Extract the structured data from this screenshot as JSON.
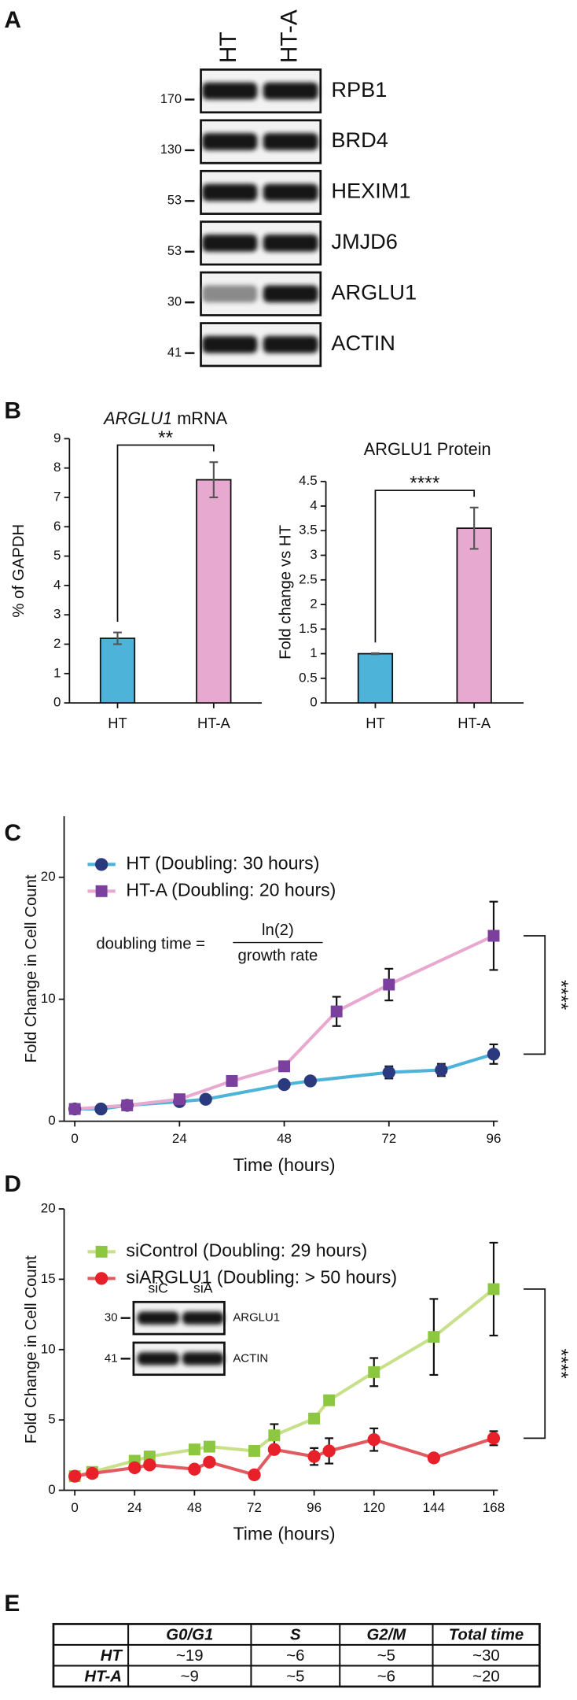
{
  "panel_labels": [
    "A",
    "B",
    "C",
    "D",
    "E"
  ],
  "blot_a": {
    "lanes": [
      "HT",
      "HT-A"
    ],
    "rows": [
      {
        "label": "RPB1",
        "marker": 170
      },
      {
        "label": "BRD4",
        "marker": 130
      },
      {
        "label": "HEXIM1",
        "marker": 53
      },
      {
        "label": "JMJD6",
        "marker": 53
      },
      {
        "label": "ARGLU1",
        "marker": 30
      },
      {
        "label": "ACTIN",
        "marker": 41
      }
    ]
  },
  "chart_data": [
    {
      "type": "bar",
      "title": [
        "ARGLU1",
        "mRNA"
      ],
      "ylabel": "% of GAPDH",
      "categories": [
        "HT",
        "HT-A"
      ],
      "values": [
        2.2,
        7.6
      ],
      "errors": [
        0.2,
        0.6
      ],
      "colors": [
        "#4db3d8",
        "#e8a9d0"
      ],
      "ylim": [
        0,
        9
      ],
      "yticks": [
        0,
        1,
        2,
        3,
        4,
        5,
        6,
        7,
        8,
        9
      ],
      "significance": "**"
    },
    {
      "type": "bar",
      "title": "ARGLU1 Protein",
      "ylabel": "Fold change vs HT",
      "categories": [
        "HT",
        "HT-A"
      ],
      "values": [
        1.0,
        3.55
      ],
      "errors": [
        0.01,
        0.42
      ],
      "colors": [
        "#4db3d8",
        "#e8a9d0"
      ],
      "ylim": [
        0,
        4.5
      ],
      "yticks": [
        0,
        0.5,
        1,
        1.5,
        2,
        2.5,
        3,
        3.5,
        4,
        4.5
      ],
      "significance": "****"
    },
    {
      "type": "line",
      "xlabel": "Time (hours)",
      "ylabel": "Fold Change in Cell Count",
      "xlim": [
        0,
        96
      ],
      "xticks": [
        0,
        24,
        48,
        72,
        96
      ],
      "ylim": [
        0,
        25
      ],
      "yticks": [
        0,
        10,
        20
      ],
      "series": [
        {
          "name": "HT (Doubling: 30 hours)",
          "color": "#2b3a7e",
          "line_color": "#4db3d8",
          "marker": "circle",
          "x": [
            0,
            6,
            12,
            24,
            30,
            48,
            54,
            72,
            84,
            96
          ],
          "values": [
            1,
            1,
            1.3,
            1.6,
            1.8,
            3.0,
            3.3,
            4.0,
            4.2,
            5.5
          ],
          "errors": [
            null,
            null,
            null,
            null,
            null,
            null,
            null,
            0.5,
            0.5,
            0.8
          ]
        },
        {
          "name": "HT-A (Doubling: 20 hours)",
          "color": "#7b3f9e",
          "line_color": "#e8a9d0",
          "marker": "square",
          "x": [
            0,
            12,
            24,
            36,
            48,
            60,
            72,
            96
          ],
          "values": [
            1,
            1.3,
            1.8,
            3.3,
            4.5,
            9.0,
            11.2,
            15.2
          ],
          "errors": [
            null,
            null,
            null,
            null,
            null,
            1.2,
            1.3,
            2.8
          ]
        }
      ],
      "equation": {
        "lhs": "doubling time =",
        "numerator": "ln(2)",
        "denominator": "growth rate"
      },
      "significance": "****"
    },
    {
      "type": "line",
      "xlabel": "Time (hours)",
      "ylabel": "Fold Change in Cell Count",
      "xlim": [
        0,
        168
      ],
      "xticks": [
        0,
        24,
        48,
        72,
        96,
        120,
        144,
        168
      ],
      "ylim": [
        0,
        20
      ],
      "yticks": [
        0,
        5,
        10,
        15,
        20
      ],
      "series": [
        {
          "name": "siControl (Doubling: 29 hours)",
          "color": "#8dc63f",
          "line_color": "#c8e08a",
          "marker": "square",
          "x": [
            0,
            7,
            24,
            30,
            48,
            54,
            72,
            80,
            96,
            102,
            120,
            144,
            168
          ],
          "values": [
            1,
            1.3,
            2.1,
            2.4,
            2.9,
            3.1,
            2.8,
            3.9,
            5.1,
            6.4,
            8.4,
            10.9,
            14.3
          ],
          "errors": [
            null,
            null,
            null,
            null,
            null,
            null,
            null,
            0.8,
            null,
            0.3,
            1.0,
            2.7,
            3.3
          ]
        },
        {
          "name": "siARGLU1 (Doubling: > 50 hours)",
          "color": "#e8202a",
          "line_color": "#e05a60",
          "marker": "circle",
          "x": [
            0,
            7,
            24,
            30,
            48,
            54,
            72,
            80,
            96,
            102,
            120,
            144,
            168
          ],
          "values": [
            1,
            1.2,
            1.6,
            1.8,
            1.5,
            2.0,
            1.1,
            2.9,
            2.4,
            2.8,
            3.6,
            2.3,
            3.7
          ],
          "errors": [
            null,
            null,
            null,
            null,
            null,
            null,
            null,
            null,
            0.6,
            0.9,
            0.8,
            null,
            0.5
          ]
        }
      ],
      "inset_blot": {
        "lanes": [
          "siC",
          "siA"
        ],
        "rows": [
          {
            "label": "ARGLU1",
            "marker": 30
          },
          {
            "label": "ACTIN",
            "marker": 41
          }
        ]
      },
      "significance": "****"
    }
  ],
  "table_e": {
    "headers": [
      "G0/G1",
      "S",
      "G2/M",
      "Total time"
    ],
    "rows": [
      [
        "HT",
        "~19",
        "~6",
        "~5",
        "~30"
      ],
      [
        "HT-A",
        "~9",
        "~5",
        "~6",
        "~20"
      ]
    ]
  }
}
